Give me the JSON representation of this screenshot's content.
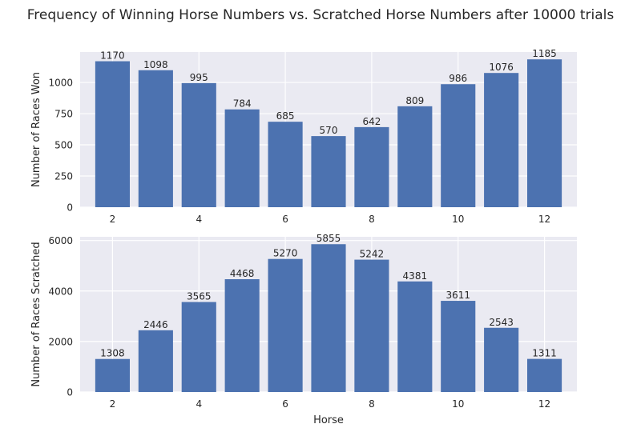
{
  "figure": {
    "title": "Frequency of Winning Horse Numbers vs. Scratched Horse Numbers after 10000 trials"
  },
  "colors": {
    "bar": "#4c72b0",
    "plot_background": "#eaeaf2",
    "grid": "#ffffff",
    "text": "#262626"
  },
  "chart_data": [
    {
      "type": "bar",
      "title": "",
      "xlabel": "",
      "ylabel": "Number of Races Won",
      "x": [
        2,
        3,
        4,
        5,
        6,
        7,
        8,
        9,
        10,
        11,
        12
      ],
      "values": [
        1170,
        1098,
        995,
        784,
        685,
        570,
        642,
        809,
        986,
        1076,
        1185
      ],
      "xticks": [
        2,
        4,
        6,
        8,
        10,
        12
      ],
      "yticks": [
        0,
        250,
        500,
        750,
        1000
      ],
      "xlim": [
        1.25,
        12.75
      ],
      "ylim": [
        0,
        1244
      ],
      "data_labels": true,
      "grid": true,
      "legend": "none"
    },
    {
      "type": "bar",
      "title": "",
      "xlabel": "Horse",
      "ylabel": "Number of Races Scratched",
      "x": [
        2,
        3,
        4,
        5,
        6,
        7,
        8,
        9,
        10,
        11,
        12
      ],
      "values": [
        1308,
        2446,
        3565,
        4468,
        5270,
        5855,
        5242,
        4381,
        3611,
        2543,
        1311
      ],
      "xticks": [
        2,
        4,
        6,
        8,
        10,
        12
      ],
      "yticks": [
        0,
        2000,
        4000,
        6000
      ],
      "xlim": [
        1.25,
        12.75
      ],
      "ylim": [
        0,
        6148
      ],
      "data_labels": true,
      "grid": true,
      "legend": "none"
    }
  ]
}
